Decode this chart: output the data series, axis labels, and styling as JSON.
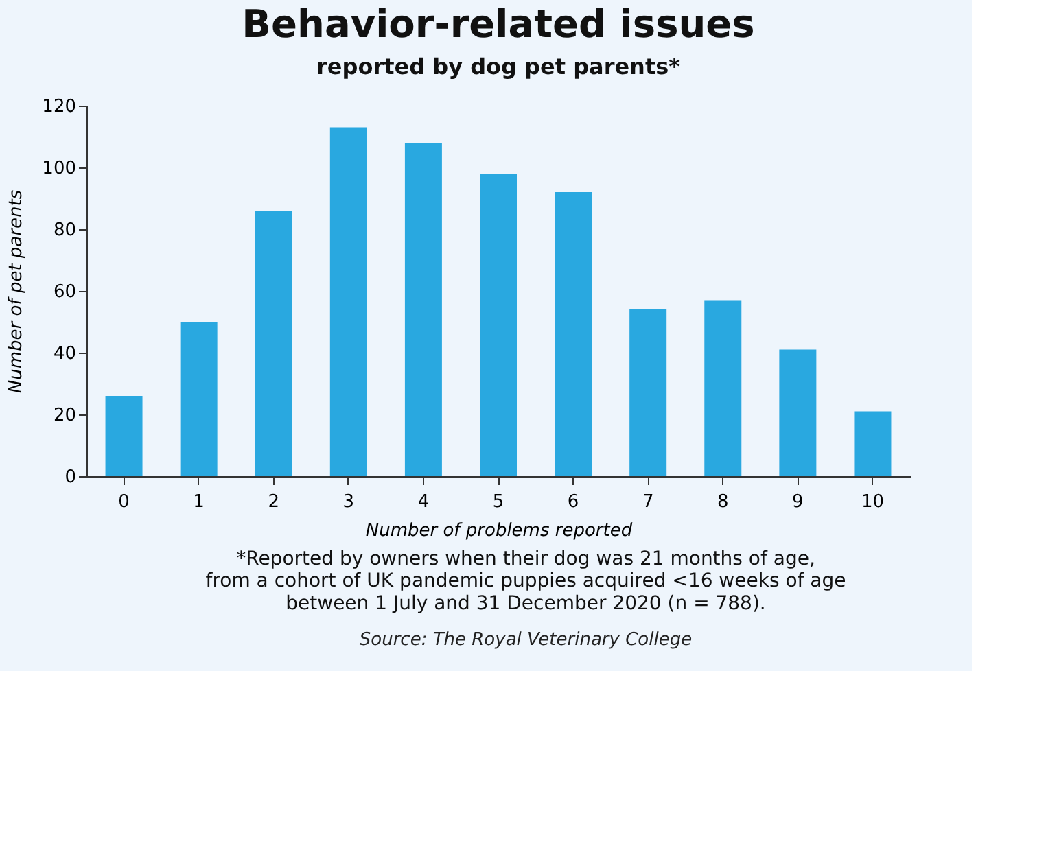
{
  "chart_data": {
    "type": "bar",
    "title": "Behavior-related issues",
    "subtitle": "reported by dog pet parents*",
    "xlabel": "Number of problems reported",
    "ylabel": "Number of pet parents",
    "categories": [
      "0",
      "1",
      "2",
      "3",
      "4",
      "5",
      "6",
      "7",
      "8",
      "9",
      "10"
    ],
    "values": [
      26,
      50,
      86,
      113,
      108,
      98,
      92,
      54,
      57,
      41,
      21
    ],
    "color": "#29a8e0",
    "ylim": [
      0,
      120
    ],
    "yticks": [
      0,
      20,
      40,
      60,
      80,
      100,
      120
    ],
    "grid": false,
    "annotations": [
      "*Reported by owners when their dog was 21 months of age,",
      "from a cohort of UK pandemic puppies acquired <16 weeks of age",
      "between 1 July and 31 December 2020 (n = 788).",
      "Source: The Royal Veterinary College"
    ]
  }
}
